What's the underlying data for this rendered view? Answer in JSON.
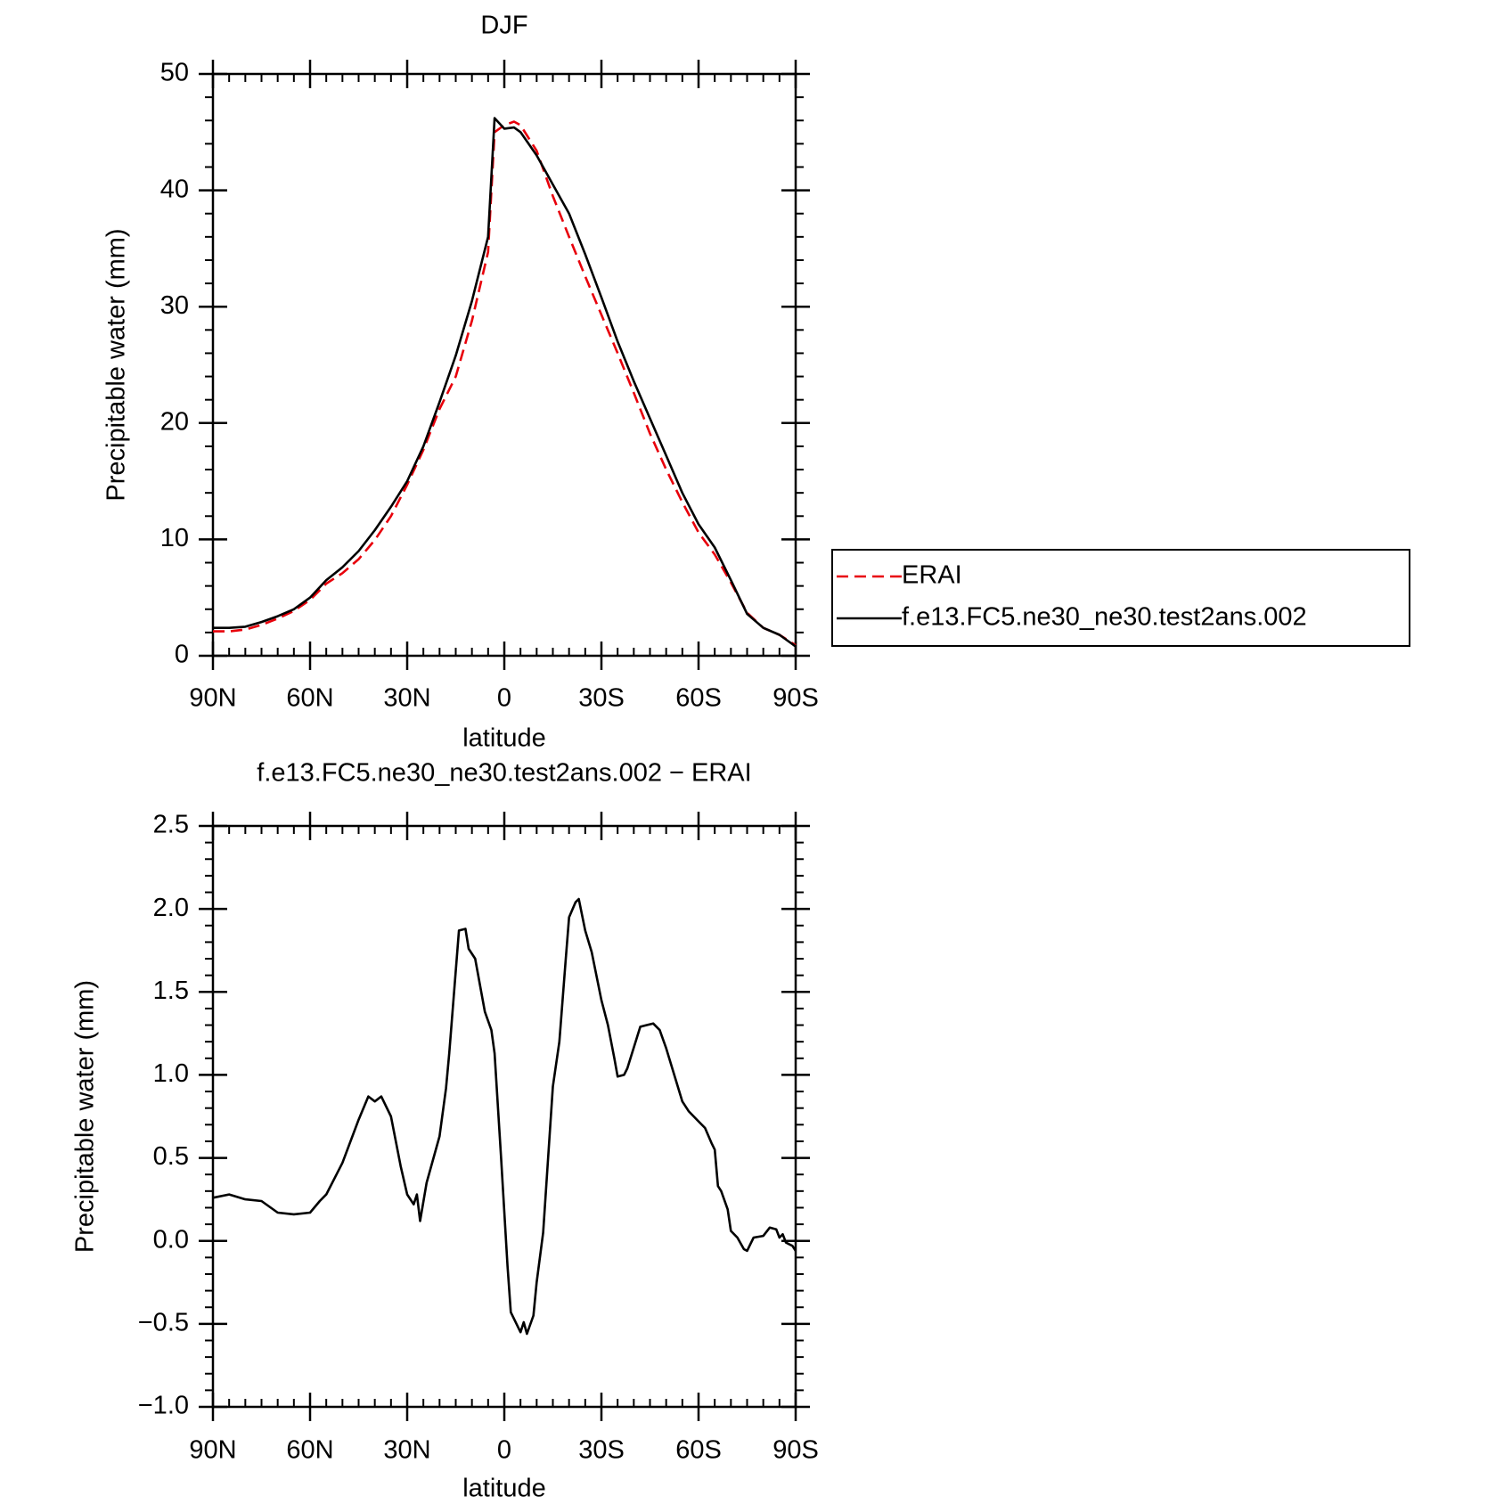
{
  "chart_data": [
    {
      "type": "line",
      "title": "DJF",
      "xlabel": "latitude",
      "ylabel": "Precipitable water (mm)",
      "xlim": [
        90,
        -90
      ],
      "xticks": [
        {
          "value": 90,
          "label": "90N"
        },
        {
          "value": 60,
          "label": "60N"
        },
        {
          "value": 30,
          "label": "30N"
        },
        0,
        {
          "value": -30,
          "label": "30S"
        },
        {
          "value": -60,
          "label": "60S"
        },
        {
          "value": -90,
          "label": "90S"
        }
      ],
      "ylim": [
        0,
        50
      ],
      "yticks": [
        0,
        10,
        20,
        30,
        40,
        50
      ],
      "legend": "right",
      "x": [
        90,
        85,
        80,
        75,
        70,
        65,
        60,
        55,
        50,
        45,
        40,
        35,
        30,
        25,
        20,
        15,
        10,
        5,
        3,
        0,
        -3,
        -5,
        -10,
        -15,
        -20,
        -25,
        -30,
        -35,
        -40,
        -45,
        -50,
        -55,
        -60,
        -65,
        -70,
        -75,
        -80,
        -85,
        -90
      ],
      "series": [
        {
          "name": "ERAI",
          "color": "#e8000b",
          "line_style": "dashed",
          "values": [
            2.1,
            2.1,
            2.25,
            2.65,
            3.2,
            3.85,
            4.8,
            6.2,
            7.1,
            8.3,
            9.95,
            12.0,
            14.7,
            17.7,
            21.2,
            24.0,
            28.8,
            34.7,
            45.0,
            45.6,
            45.9,
            45.6,
            43.4,
            39.5,
            36.0,
            32.6,
            29.3,
            26.0,
            22.6,
            19.1,
            16.0,
            13.2,
            10.6,
            8.7,
            6.3,
            3.7,
            2.4,
            1.8,
            0.9
          ]
        },
        {
          "name": "f.e13.FC5.ne30_ne30.test2ans.002",
          "color": "#000000",
          "line_style": "solid",
          "values": [
            2.4,
            2.4,
            2.5,
            2.9,
            3.4,
            4.0,
            5.0,
            6.5,
            7.6,
            9.0,
            10.8,
            12.8,
            15.0,
            18.0,
            21.8,
            25.8,
            30.5,
            36.0,
            46.2,
            45.3,
            45.4,
            45.0,
            43.0,
            40.5,
            38.0,
            34.5,
            30.8,
            27.0,
            23.6,
            20.4,
            17.2,
            14.0,
            11.3,
            9.3,
            6.5,
            3.6,
            2.4,
            1.8,
            0.8
          ]
        }
      ]
    },
    {
      "type": "line",
      "title": "f.e13.FC5.ne30_ne30.test2ans.002 − ERAI",
      "xlabel": "latitude",
      "ylabel": "Precipitable water (mm)",
      "xlim": [
        90,
        -90
      ],
      "xticks": [
        {
          "value": 90,
          "label": "90N"
        },
        {
          "value": 60,
          "label": "60N"
        },
        {
          "value": 30,
          "label": "30N"
        },
        0,
        {
          "value": -30,
          "label": "30S"
        },
        {
          "value": -60,
          "label": "60S"
        },
        {
          "value": -90,
          "label": "90S"
        }
      ],
      "ylim": [
        -1,
        2.5
      ],
      "yticks": [
        {
          "value": -1,
          "label": "−1.0"
        },
        {
          "value": -0.5,
          "label": "−0.5"
        },
        {
          "value": 0,
          "label": "0.0"
        },
        0.5,
        {
          "value": 1,
          "label": "1.0"
        },
        1.5,
        {
          "value": 2,
          "label": "2.0"
        },
        2.5
      ],
      "x": [
        90,
        85,
        80,
        75,
        70,
        65,
        60,
        57,
        55,
        50,
        45,
        42,
        40,
        38,
        35,
        32,
        30,
        28,
        27,
        26,
        24,
        20,
        18,
        17,
        14,
        12,
        11,
        9,
        6,
        4,
        3,
        1,
        -1,
        -2,
        -5,
        -6,
        -7,
        -9,
        -10,
        -12,
        -15,
        -17,
        -19,
        -20,
        -22,
        -23,
        -25,
        -27,
        -30,
        -32,
        -34,
        -35,
        -37,
        -38,
        -42,
        -44,
        -46,
        -48,
        -50,
        -55,
        -57,
        -60,
        -62,
        -64,
        -65,
        -66,
        -67,
        -69,
        -70,
        -72,
        -74,
        -75,
        -77,
        -80,
        -82,
        -84,
        -85,
        -86,
        -87,
        -89,
        -90
      ],
      "series": [
        {
          "color": "#000000",
          "line_style": "solid",
          "values": [
            0.26,
            0.28,
            0.25,
            0.24,
            0.17,
            0.16,
            0.17,
            0.24,
            0.28,
            0.47,
            0.73,
            0.87,
            0.84,
            0.87,
            0.75,
            0.45,
            0.28,
            0.22,
            0.28,
            0.12,
            0.35,
            0.63,
            0.92,
            1.13,
            1.87,
            1.88,
            1.76,
            1.7,
            1.38,
            1.27,
            1.13,
            0.5,
            -0.15,
            -0.43,
            -0.55,
            -0.49,
            -0.56,
            -0.45,
            -0.25,
            0.05,
            0.93,
            1.2,
            1.7,
            1.95,
            2.04,
            2.06,
            1.87,
            1.74,
            1.45,
            1.3,
            1.1,
            0.99,
            1.0,
            1.04,
            1.29,
            1.3,
            1.31,
            1.27,
            1.16,
            0.84,
            0.78,
            0.72,
            0.68,
            0.59,
            0.55,
            0.33,
            0.3,
            0.19,
            0.06,
            0.02,
            -0.05,
            -0.06,
            0.02,
            0.03,
            0.08,
            0.07,
            0.02,
            0.04,
            -0.01,
            -0.03,
            -0.06
          ]
        }
      ]
    }
  ]
}
